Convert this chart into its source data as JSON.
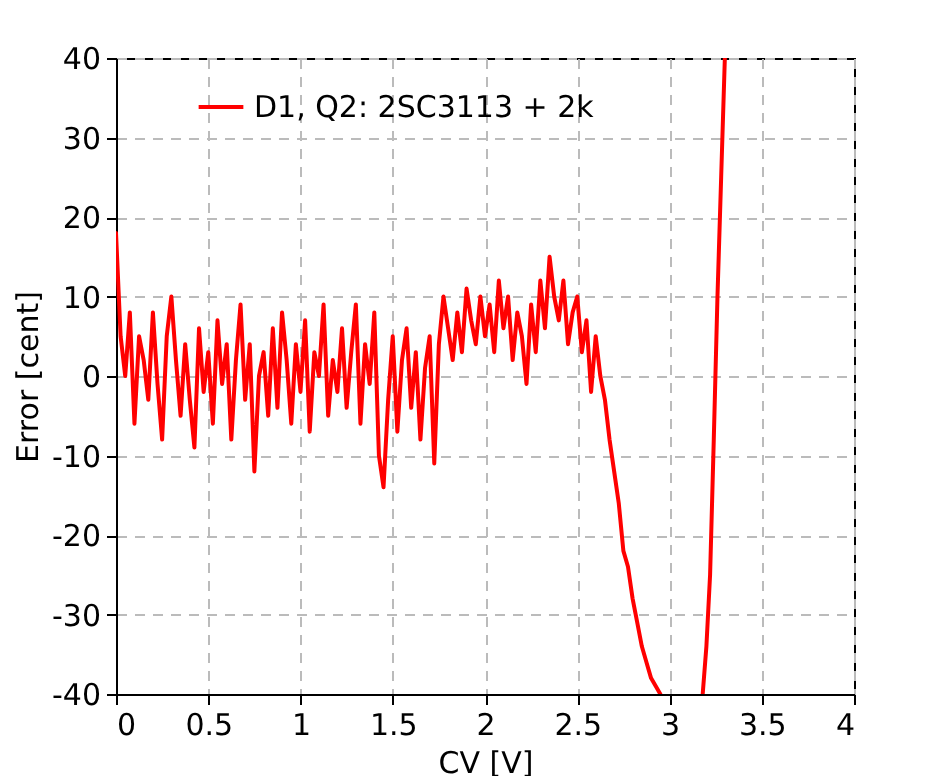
{
  "chart_data": {
    "type": "line",
    "xlabel": "CV [V]",
    "ylabel": "Error [cent]",
    "xlim": [
      0,
      4
    ],
    "ylim": [
      -40,
      40
    ],
    "xticks": [
      0,
      0.5,
      1,
      1.5,
      2,
      2.5,
      3,
      3.5,
      4
    ],
    "yticks": [
      -40,
      -30,
      -20,
      -10,
      0,
      10,
      20,
      30,
      40
    ],
    "grid": true,
    "legend": "top",
    "line_style": "solid",
    "marker": "none",
    "x": [
      0,
      0.025,
      0.05,
      0.075,
      0.1,
      0.125,
      0.15,
      0.175,
      0.2,
      0.225,
      0.25,
      0.275,
      0.3,
      0.325,
      0.35,
      0.375,
      0.4,
      0.425,
      0.45,
      0.475,
      0.5,
      0.525,
      0.55,
      0.575,
      0.6,
      0.625,
      0.65,
      0.675,
      0.7,
      0.725,
      0.75,
      0.775,
      0.8,
      0.825,
      0.85,
      0.875,
      0.9,
      0.925,
      0.95,
      0.975,
      1,
      1.025,
      1.05,
      1.075,
      1.1,
      1.125,
      1.15,
      1.175,
      1.2,
      1.225,
      1.25,
      1.275,
      1.3,
      1.325,
      1.35,
      1.375,
      1.4,
      1.425,
      1.45,
      1.475,
      1.5,
      1.525,
      1.55,
      1.575,
      1.6,
      1.625,
      1.65,
      1.675,
      1.7,
      1.725,
      1.75,
      1.775,
      1.8,
      1.825,
      1.85,
      1.875,
      1.9,
      1.925,
      1.95,
      1.975,
      2,
      2.025,
      2.05,
      2.075,
      2.1,
      2.125,
      2.15,
      2.175,
      2.2,
      2.225,
      2.25,
      2.275,
      2.3,
      2.325,
      2.35,
      2.375,
      2.4,
      2.425,
      2.45,
      2.475,
      2.5,
      2.525,
      2.55,
      2.575,
      2.6,
      2.625,
      2.65,
      2.675,
      2.7,
      2.725,
      2.75,
      2.775,
      2.8,
      2.825,
      2.85,
      2.875,
      2.9,
      2.925,
      2.95,
      3.05,
      3.18,
      3.2,
      3.22,
      3.24,
      3.26,
      3.28,
      3.3
    ],
    "series": [
      {
        "name": "D1, Q2: 2SC3113 + 2k",
        "color": "#ff0000",
        "values": [
          18,
          5,
          0,
          8,
          -6,
          5,
          2,
          -3,
          8,
          -1,
          -8,
          5,
          10,
          2,
          -5,
          4,
          -3,
          -9,
          6,
          -2,
          3,
          -6,
          7,
          -1,
          4,
          -8,
          2,
          9,
          -3,
          4,
          -12,
          0,
          3,
          -5,
          6,
          -4,
          8,
          2,
          -6,
          4,
          -2,
          7,
          -7,
          3,
          0,
          9,
          -5,
          2,
          -2,
          6,
          -4,
          3,
          9,
          -6,
          4,
          -1,
          8,
          -10,
          -14,
          -3,
          5,
          -7,
          2,
          6,
          -4,
          3,
          -8,
          1,
          5,
          -11,
          4,
          10,
          6,
          2,
          8,
          3,
          11,
          7,
          4,
          10,
          5,
          9,
          3,
          12,
          6,
          10,
          2,
          8,
          5,
          -1,
          9,
          3,
          12,
          6,
          15,
          10,
          7,
          12,
          4,
          8,
          10,
          3,
          7,
          -2,
          5,
          0,
          -3,
          -8,
          -12,
          -16,
          -22,
          -24,
          -28,
          -31,
          -34,
          -36,
          -38,
          -39,
          -40,
          null,
          -40,
          -34,
          -25,
          -8,
          10,
          25,
          40
        ]
      }
    ]
  }
}
